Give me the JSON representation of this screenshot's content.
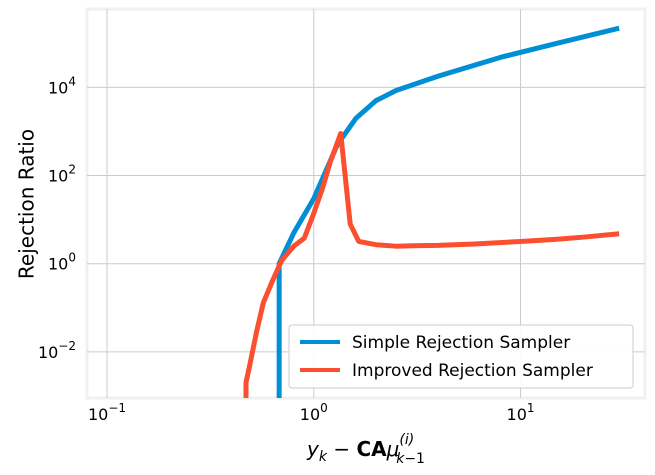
{
  "chart_data": {
    "type": "line",
    "x_scale": "log",
    "y_scale": "log",
    "xlim": [
      0.08,
      40
    ],
    "ylim": [
      0.0009,
      600000
    ],
    "xlabel": "y_k − CAμ_{k−1}^{(i)}",
    "ylabel": "Rejection Ratio",
    "grid": true,
    "legend_position": "lower-right",
    "x_ticks": [
      {
        "value": 0.1,
        "base": "10",
        "exp": "−1"
      },
      {
        "value": 1,
        "base": "10",
        "exp": "0"
      },
      {
        "value": 10,
        "base": "10",
        "exp": "1"
      }
    ],
    "y_ticks": [
      {
        "value": 0.01,
        "base": "10",
        "exp": "−2"
      },
      {
        "value": 1,
        "base": "10",
        "exp": "0"
      },
      {
        "value": 100,
        "base": "10",
        "exp": "2"
      },
      {
        "value": 10000,
        "base": "10",
        "exp": "4"
      }
    ],
    "series": [
      {
        "name": "Simple Rejection Sampler",
        "color": "#008fd5",
        "points": [
          [
            0.68,
            0.0009
          ],
          [
            0.68,
            1.0
          ],
          [
            0.8,
            5
          ],
          [
            1.0,
            30
          ],
          [
            1.3,
            500
          ],
          [
            1.6,
            2000
          ],
          [
            2.0,
            5000
          ],
          [
            2.5,
            8500
          ],
          [
            4,
            18000
          ],
          [
            8,
            48000
          ],
          [
            15,
            100000
          ],
          [
            30,
            220000
          ]
        ]
      },
      {
        "name": "Improved Rejection Sampler",
        "color": "#fc4f30",
        "points": [
          [
            0.47,
            0.0009
          ],
          [
            0.47,
            0.002
          ],
          [
            0.49,
            0.005
          ],
          [
            0.53,
            0.03
          ],
          [
            0.57,
            0.13
          ],
          [
            0.63,
            0.4
          ],
          [
            0.7,
            1.2
          ],
          [
            0.8,
            2.5
          ],
          [
            0.9,
            3.8
          ],
          [
            1.0,
            14
          ],
          [
            1.1,
            50
          ],
          [
            1.2,
            200
          ],
          [
            1.35,
            900
          ],
          [
            1.5,
            8
          ],
          [
            1.65,
            3.2
          ],
          [
            2.0,
            2.7
          ],
          [
            2.5,
            2.5
          ],
          [
            3,
            2.55
          ],
          [
            4,
            2.6
          ],
          [
            6,
            2.8
          ],
          [
            10,
            3.2
          ],
          [
            15,
            3.6
          ],
          [
            20,
            4.0
          ],
          [
            30,
            4.8
          ]
        ]
      }
    ]
  }
}
